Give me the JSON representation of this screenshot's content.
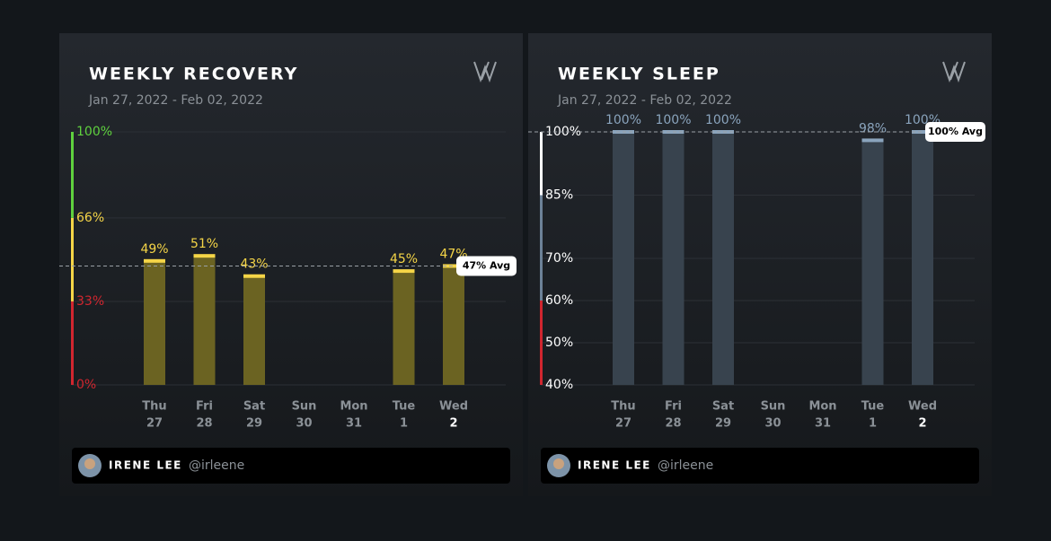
{
  "chart_data": [
    {
      "type": "bar",
      "title": "WEEKLY RECOVERY",
      "subtitle": "Jan 27, 2022 - Feb 02, 2022",
      "categories": [
        "Thu",
        "Fri",
        "Sat",
        "Sun",
        "Mon",
        "Tue",
        "Wed"
      ],
      "category_dates": [
        "27",
        "28",
        "29",
        "30",
        "31",
        "1",
        "2"
      ],
      "values": [
        49,
        51,
        43,
        null,
        null,
        45,
        47
      ],
      "value_labels": [
        "49%",
        "51%",
        "43%",
        null,
        null,
        "45%",
        "47%"
      ],
      "color": "#6b6322",
      "cap_color": "#f5d547",
      "ylim": [
        0,
        100
      ],
      "yticks": [
        {
          "value": 0,
          "label": "0%"
        },
        {
          "value": 33,
          "label": "33%"
        },
        {
          "value": 66,
          "label": "66%"
        },
        {
          "value": 100,
          "label": "100%"
        }
      ],
      "ytick_colors": [
        "#d1262f",
        "#d1262f",
        "#f5d547",
        "#5fd13e"
      ],
      "axis_bands": [
        {
          "from": 0,
          "to": 33,
          "color": "#d1262f"
        },
        {
          "from": 33,
          "to": 66,
          "color": "#f5d547"
        },
        {
          "from": 66,
          "to": 100,
          "color": "#5fd13e"
        }
      ],
      "avg": 47,
      "avg_label": "47% Avg",
      "grid": true
    },
    {
      "type": "bar",
      "title": "WEEKLY SLEEP",
      "subtitle": "Jan 27, 2022 - Feb 02, 2022",
      "categories": [
        "Thu",
        "Fri",
        "Sat",
        "Sun",
        "Mon",
        "Tue",
        "Wed"
      ],
      "category_dates": [
        "27",
        "28",
        "29",
        "30",
        "31",
        "1",
        "2"
      ],
      "values": [
        100,
        100,
        100,
        null,
        null,
        98,
        100
      ],
      "value_labels": [
        "100%",
        "100%",
        "100%",
        null,
        null,
        "98%",
        "100%"
      ],
      "color": "#38434e",
      "cap_color": "#8aa4bd",
      "ylim": [
        40,
        100
      ],
      "yticks": [
        {
          "value": 40,
          "label": "40%"
        },
        {
          "value": 50,
          "label": "50%"
        },
        {
          "value": 60,
          "label": "60%"
        },
        {
          "value": 70,
          "label": "70%"
        },
        {
          "value": 85,
          "label": "85%"
        },
        {
          "value": 100,
          "label": "100%"
        }
      ],
      "ytick_colors": [
        "#ffffff",
        "#ffffff",
        "#ffffff",
        "#ffffff",
        "#ffffff",
        "#ffffff"
      ],
      "axis_bands": [
        {
          "from": 40,
          "to": 60,
          "color": "#d1262f"
        },
        {
          "from": 60,
          "to": 85,
          "color": "#6d8298"
        },
        {
          "from": 85,
          "to": 100,
          "color": "#ffffff"
        }
      ],
      "avg": 100,
      "avg_label": "100% Avg",
      "grid": true
    }
  ],
  "user": {
    "name": "IRENE LEE",
    "handle": "@irleene"
  }
}
